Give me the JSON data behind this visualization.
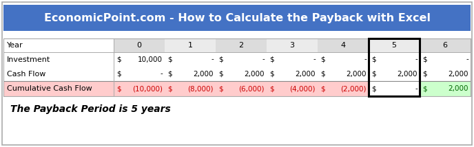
{
  "title": "EconomicPoint.com - How to Calculate the Payback with Excel",
  "title_bg": "#4472C4",
  "title_color": "#FFFFFF",
  "title_fontsize": 11.5,
  "footer_text": "The Payback Period is 5 years",
  "years": [
    "0",
    "1",
    "2",
    "3",
    "4",
    "5",
    "6"
  ],
  "row_labels": [
    "Year",
    "Investment",
    "Cash Flow",
    "Cumulative Cash Flow"
  ],
  "investment_dollar": [
    "$",
    "$",
    "$",
    "$",
    "$",
    "$",
    "$"
  ],
  "investment_vals": [
    "10,000",
    "-",
    "-",
    "-",
    "-",
    "-",
    "-"
  ],
  "cashflow_dollar": [
    "$",
    "$",
    "$",
    "$",
    "$",
    "$",
    "$"
  ],
  "cashflow_vals": [
    "-",
    "2,000",
    "2,000",
    "2,000",
    "2,000",
    "2,000",
    "2,000"
  ],
  "cumulative_dollar": [
    "$",
    "$",
    "$",
    "$",
    "$",
    "$",
    "$"
  ],
  "cumulative_vals": [
    "(10,000)",
    "(8,000)",
    "(6,000)",
    "(4,000)",
    "(2,000)",
    "-",
    "2,000"
  ],
  "cumulative_colors": [
    "#FFCCCC",
    "#FFCCCC",
    "#FFCCCC",
    "#FFCCCC",
    "#FFCCCC",
    "#FFFFFF",
    "#CCFFCC"
  ],
  "cumulative_text_colors": [
    "#CC0000",
    "#CC0000",
    "#CC0000",
    "#CC0000",
    "#CC0000",
    "#000000",
    "#006600"
  ],
  "label_cumulative_bg": "#FFCCCC",
  "highlight_col": 5,
  "year_row_bg_even": "#DCDCDC",
  "year_row_bg_odd": "#EBEBEB",
  "fig_bg": "#FFFFFF",
  "border_color": "#AAAAAA"
}
